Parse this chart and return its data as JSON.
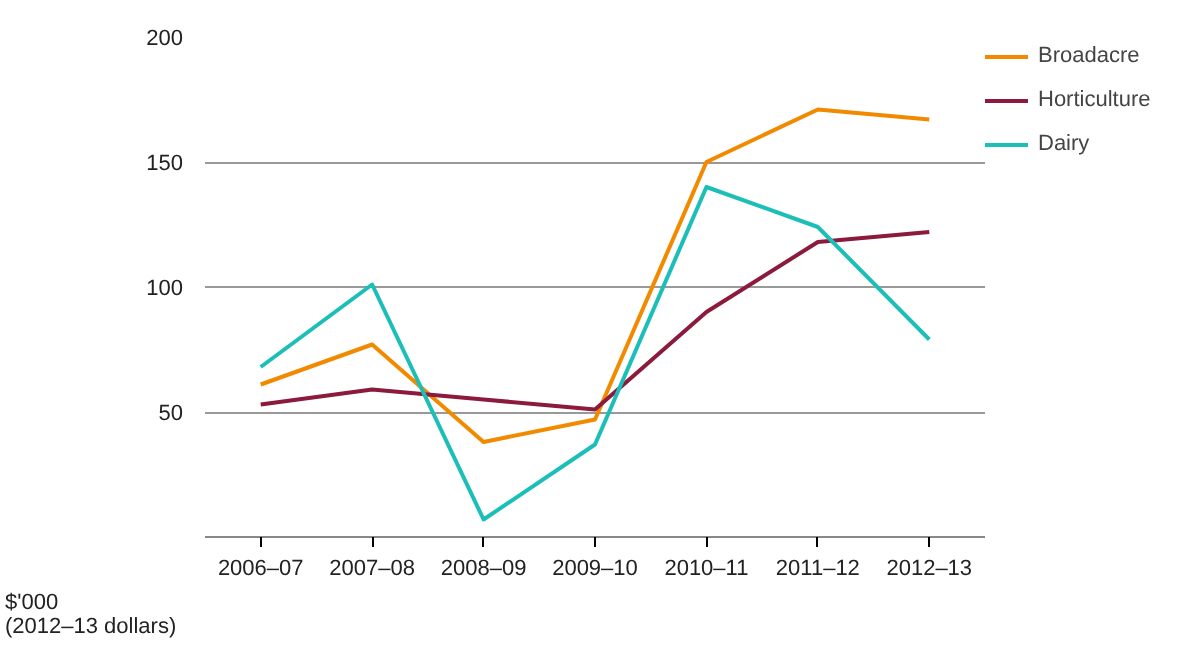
{
  "chart_data": {
    "type": "line",
    "ylabel": "$'000\n(2012–13 dollars)",
    "categories": [
      "2006–07",
      "2007–08",
      "2008–09",
      "2009–10",
      "2010–11",
      "2011–12",
      "2012–13"
    ],
    "series": [
      {
        "name": "Broadacre",
        "color": "#f28a00",
        "values": [
          61,
          77,
          38,
          47,
          150,
          171,
          167
        ]
      },
      {
        "name": "Horticulture",
        "color": "#8b1a3c",
        "values": [
          53,
          59,
          55,
          51,
          90,
          118,
          122
        ]
      },
      {
        "name": "Dairy",
        "color": "#1cbfb8",
        "values": [
          68,
          101,
          7,
          37,
          140,
          124,
          79
        ]
      }
    ],
    "ylim": [
      0,
      200
    ],
    "yticks": [
      {
        "value": 0,
        "label": null
      },
      50,
      100,
      150,
      200
    ],
    "grid": "y",
    "legend": "top right",
    "line_style": "solid",
    "marker": "none"
  }
}
